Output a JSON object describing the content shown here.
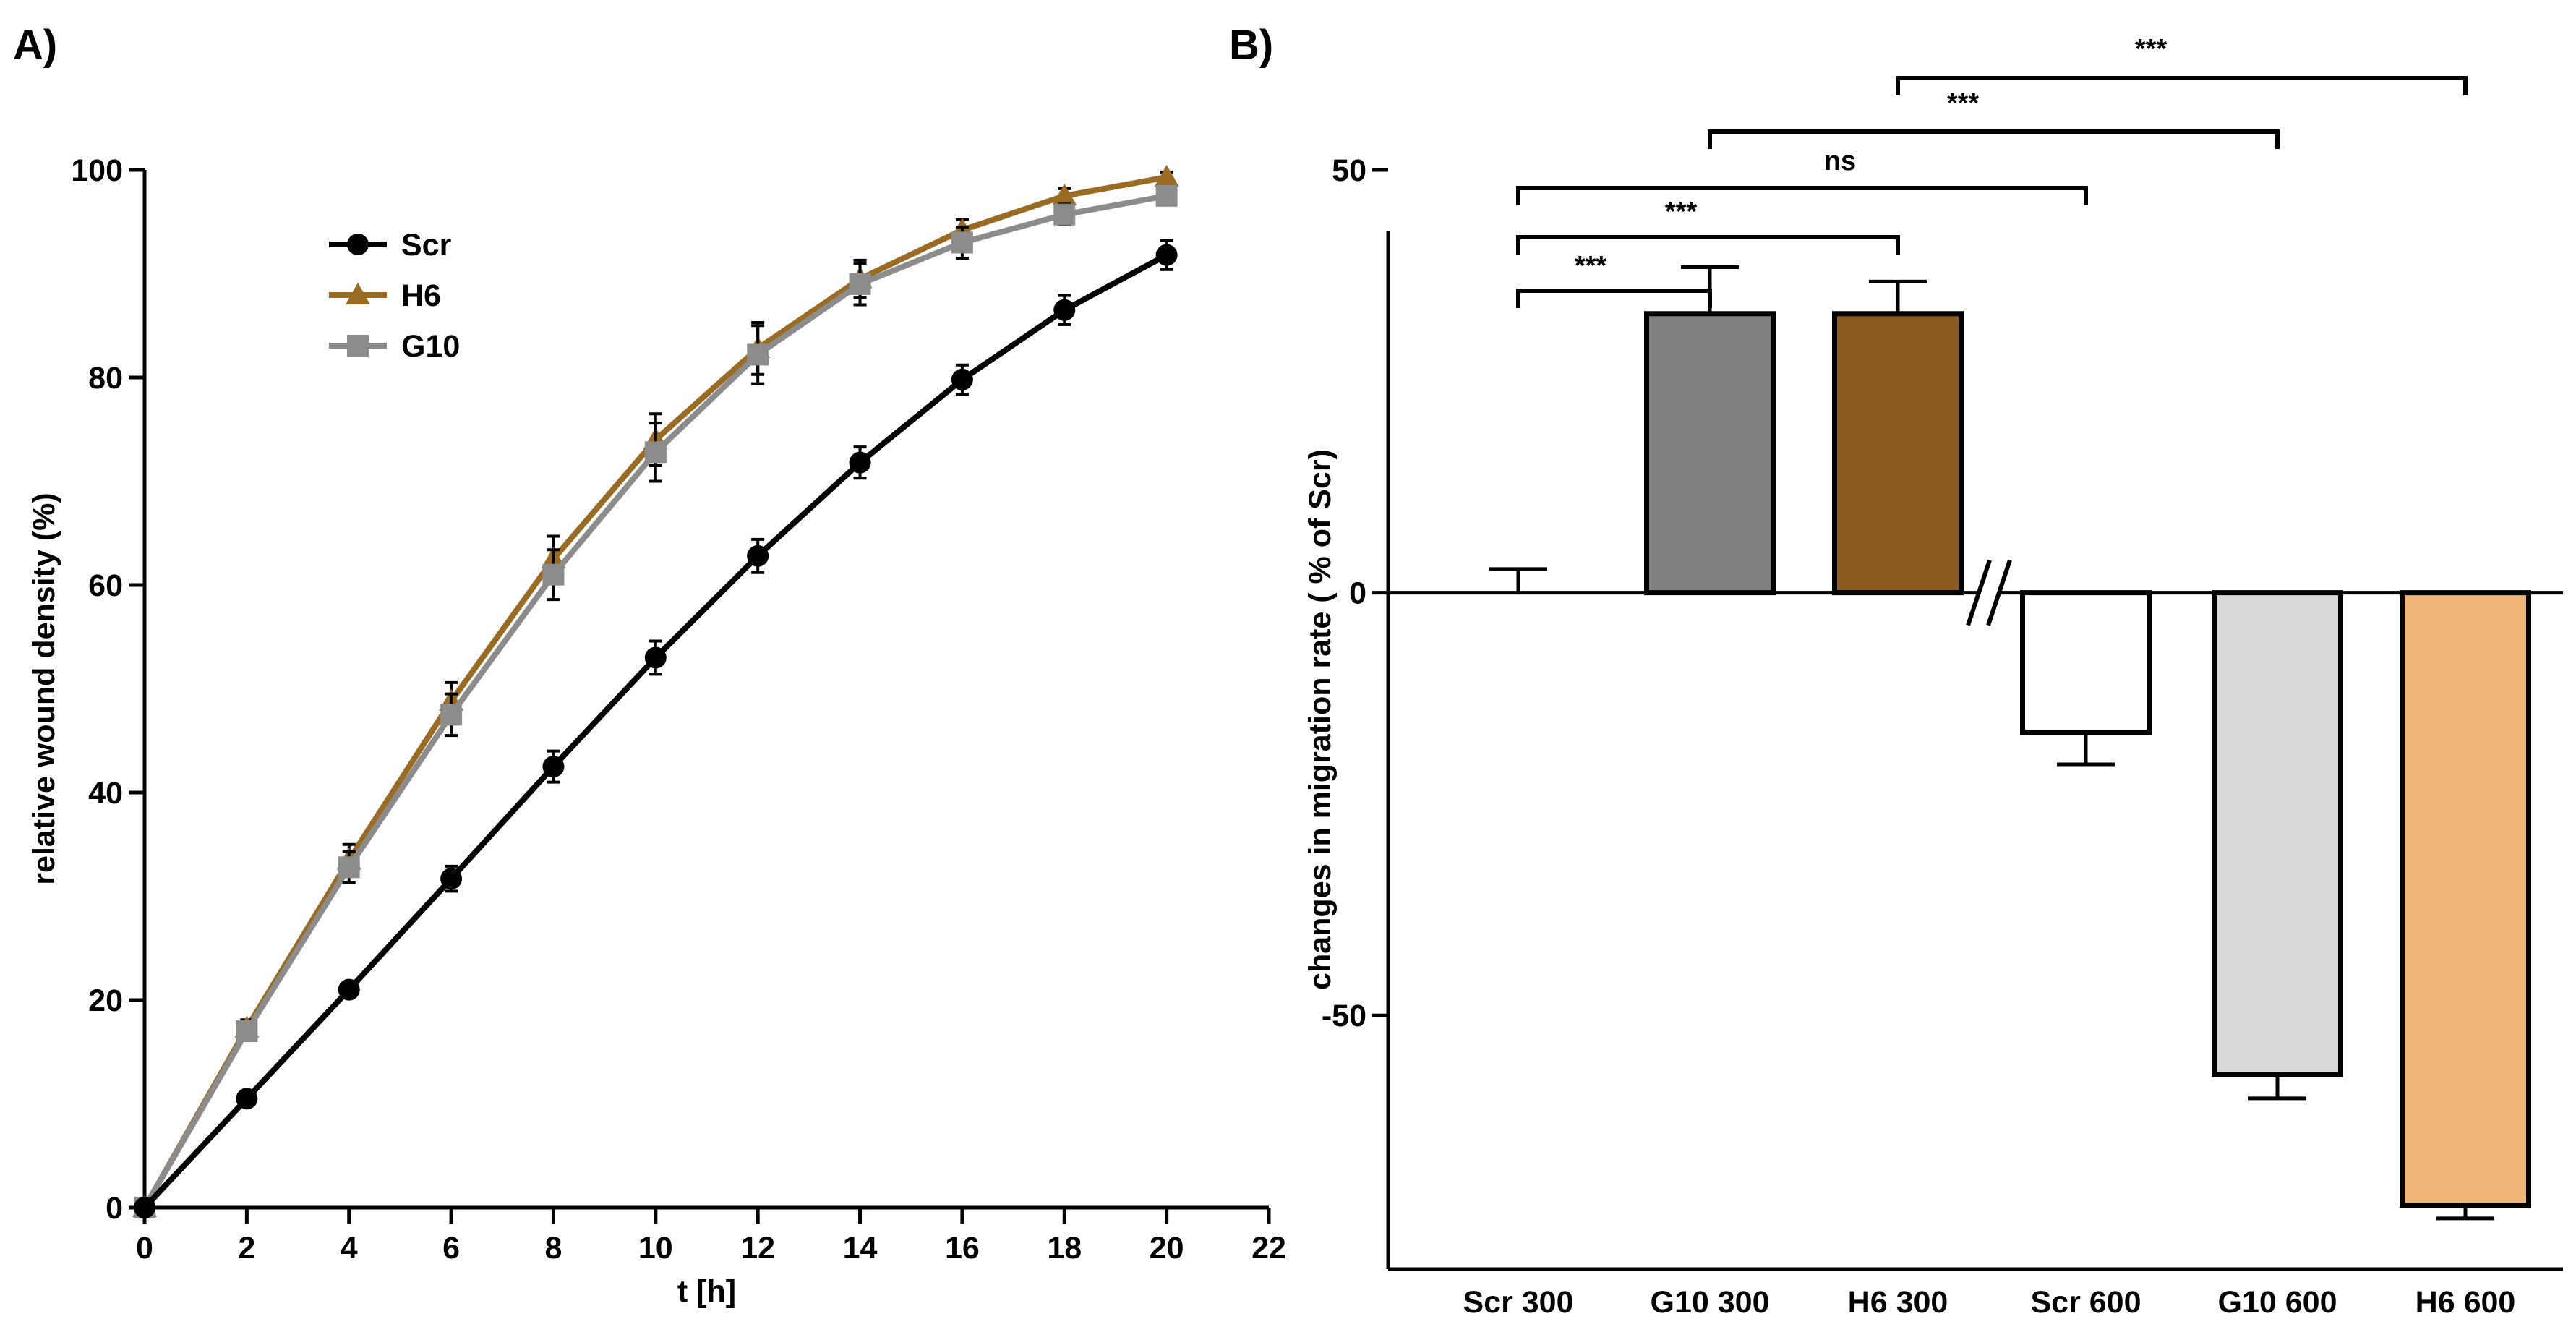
{
  "figure": {
    "panel_a_label": "A)",
    "panel_b_label": "B)"
  },
  "chart_data": [
    {
      "type": "line",
      "panel": "A)",
      "xlabel": "t [h]",
      "ylabel": "relative wound density (%)",
      "xlim": [
        0,
        22
      ],
      "ylim": [
        0,
        100
      ],
      "xticks": [
        0,
        2,
        4,
        6,
        8,
        10,
        12,
        14,
        16,
        18,
        20,
        22
      ],
      "yticks": [
        0,
        20,
        40,
        60,
        80,
        100
      ],
      "grid": false,
      "legend_position": "top-left",
      "x": [
        0,
        2,
        4,
        6,
        8,
        10,
        12,
        14,
        16,
        18,
        20
      ],
      "series": [
        {
          "name": "Scr",
          "color": "#000000",
          "marker": "circle",
          "values": [
            0,
            10.5,
            21,
            31.7,
            42.5,
            53,
            62.8,
            71.8,
            79.8,
            86.5,
            91.8
          ],
          "errors": [
            0,
            0.5,
            0.5,
            1.2,
            1.5,
            1.6,
            1.6,
            1.5,
            1.4,
            1.4,
            1.4
          ]
        },
        {
          "name": "H6",
          "color": "#9a6b22",
          "marker": "triangle",
          "values": [
            0,
            17.3,
            33.5,
            48.8,
            62.5,
            74,
            82.8,
            89.5,
            94.2,
            97.5,
            99.3
          ],
          "errors": [
            0,
            0.8,
            1.5,
            1.8,
            2.2,
            2.5,
            2.5,
            1.8,
            1.0,
            0.7,
            0.5
          ]
        },
        {
          "name": "G10",
          "color": "#8c8c8c",
          "marker": "square",
          "values": [
            0,
            17,
            32.8,
            47.5,
            61,
            72.8,
            82.2,
            89,
            93,
            95.7,
            97.5
          ],
          "errors": [
            0,
            0.8,
            1.5,
            2.0,
            2.4,
            2.8,
            2.8,
            2.0,
            1.5,
            1.0,
            0.7
          ]
        }
      ]
    },
    {
      "type": "bar",
      "panel": "B)",
      "xlabel": "",
      "ylabel": "changes in migration rate ( % of Scr)",
      "ylim": [
        -80,
        50
      ],
      "yticks": [
        -50,
        0,
        50
      ],
      "grid": false,
      "axis_break_between": [
        "H6 300",
        "Scr 600"
      ],
      "categories": [
        "Scr 300",
        "G10 300",
        "H6 300",
        "Scr 600",
        "G10 600",
        "H6 600"
      ],
      "values": [
        0,
        33,
        33,
        -16.5,
        -57,
        -72.5
      ],
      "errors": [
        2.8,
        5.5,
        3.8,
        3.8,
        2.8,
        1.5
      ],
      "colors": [
        "#ffffff",
        "#808080",
        "#8b5a1e",
        "#ffffff",
        "#d9d9d9",
        "#f0b677"
      ],
      "significance": [
        {
          "from": "Scr 300",
          "to": "G10 300",
          "label": "***"
        },
        {
          "from": "Scr 300",
          "to": "H6 300",
          "label": "***"
        },
        {
          "from": "Scr 300",
          "to": "Scr 600",
          "label": "ns"
        },
        {
          "from": "G10 300",
          "to": "G10 600",
          "label": "***"
        },
        {
          "from": "H6 300",
          "to": "H6 600",
          "label": "***"
        }
      ]
    }
  ]
}
